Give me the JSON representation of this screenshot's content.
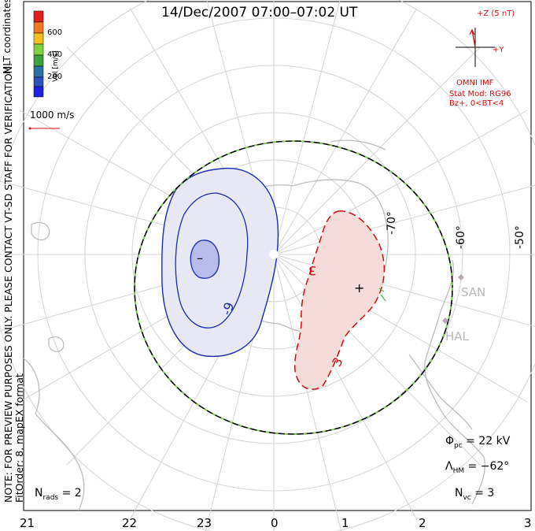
{
  "title": "14/Dec/2007 07:00–07:02 UT",
  "side_note_line1": "NOTE: FOR PREVIEW PURPOSES ONLY. PLEASE CONTACT VT-SD STAFF FOR VERIFICATION.",
  "side_note_line2": "FitOrder: 8, mapEX format",
  "coord_label": "MLT coordinates",
  "colorbar": {
    "unit": "Vel [m/s]",
    "ticks": [
      "600",
      "400",
      "200"
    ],
    "colors": [
      "#e02020",
      "#f07820",
      "#f0c020",
      "#80d040",
      "#40a040",
      "#3070a0",
      "#3050c0",
      "#2020e0"
    ]
  },
  "reference_vector": "1000 m/s",
  "imf": {
    "z_label": "+Z (5 nT)",
    "y_label": "+Y",
    "source": "OMNI IMF",
    "model_line1": "Stat Mod: RG96",
    "model_line2": "Bz+, 0<BT<4"
  },
  "latitude_labels": [
    "-70°",
    "-60°",
    "-50°"
  ],
  "sites": [
    "SAN",
    "HAL"
  ],
  "contours": {
    "negative_label": "-9",
    "negative_min_marker": "–",
    "positive_label": "3",
    "positive_label_2": "3",
    "positive_max_marker": "+"
  },
  "stats": {
    "phi_pc_symbol": "Φ",
    "phi_pc_sub": "pc",
    "phi_pc_value": "= 22 kV",
    "lambda_hm_symbol": "Λ",
    "lambda_hm_sub": "HM",
    "lambda_hm_value": "= −62°",
    "n_vc_symbol": "N",
    "n_vc_sub": "vc",
    "n_vc_value": "= 3",
    "n_rads_symbol": "N",
    "n_rads_sub": "rads",
    "n_rads_value": "= 2"
  },
  "mlt_axis": [
    "21",
    "22",
    "23",
    "0",
    "1",
    "2",
    "3"
  ]
}
